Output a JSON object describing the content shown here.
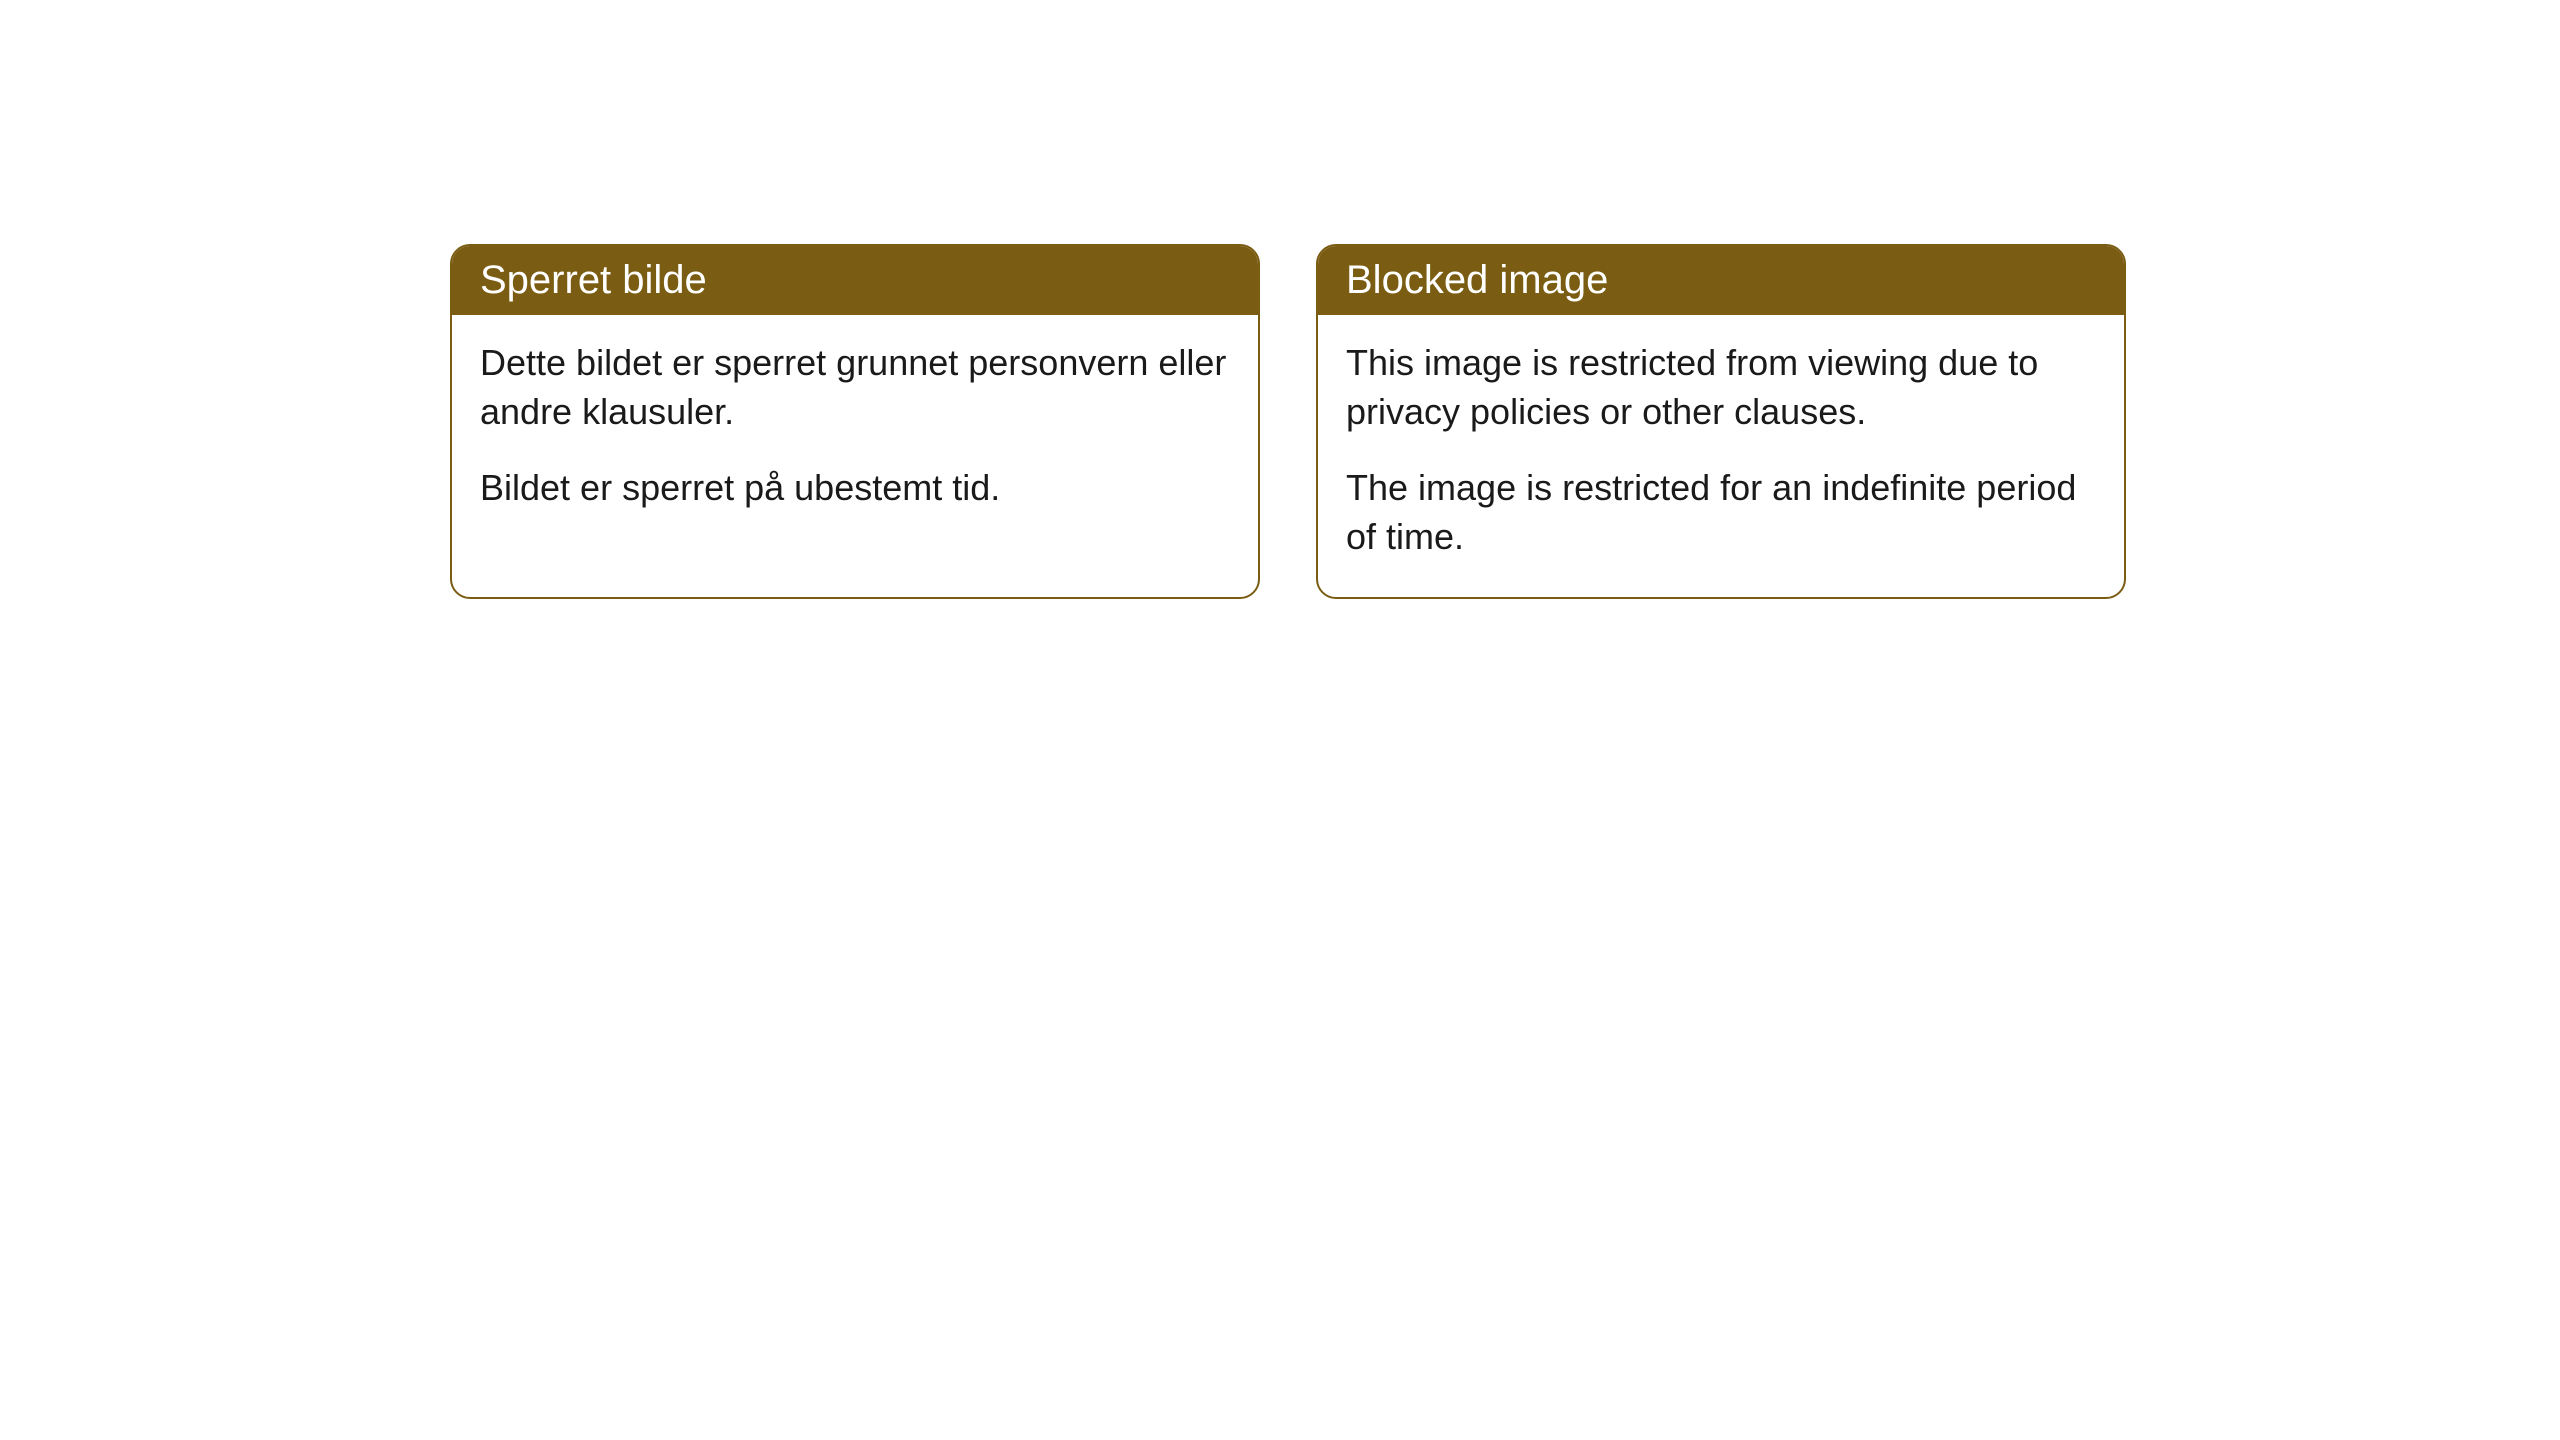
{
  "cards": [
    {
      "title": "Sperret bilde",
      "paragraph1": "Dette bildet er sperret grunnet personvern eller andre klausuler.",
      "paragraph2": "Bildet er sperret på ubestemt tid."
    },
    {
      "title": "Blocked image",
      "paragraph1": "This image is restricted from viewing due to privacy policies or other clauses.",
      "paragraph2": "The image is restricted for an indefinite period of time."
    }
  ],
  "styling": {
    "header_background": "#7a5d12",
    "header_text_color": "#ffffff",
    "border_color": "#7a5d12",
    "card_background": "#ffffff",
    "body_text_color": "#1a1a1a",
    "page_background": "#ffffff",
    "border_radius": 20,
    "header_fontsize": 40,
    "body_fontsize": 36
  }
}
